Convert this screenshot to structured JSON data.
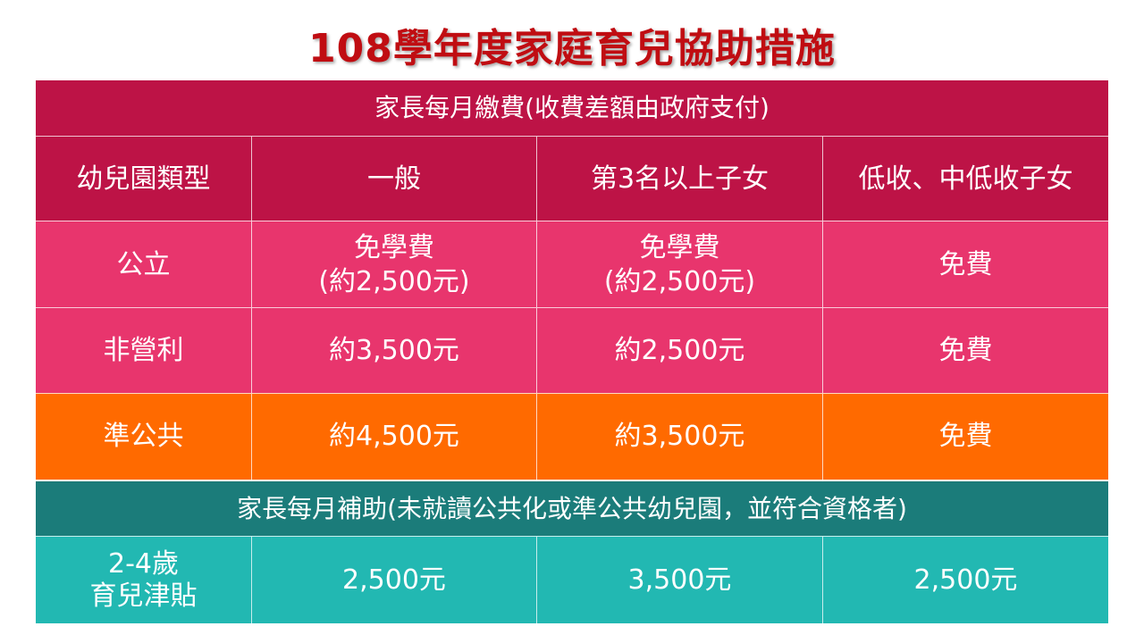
{
  "title": "108學年度家庭育兒協助措施",
  "colors": {
    "title": "#c00d12",
    "header": "#bd1346",
    "pink": "#e8356d",
    "orange": "#ff6a00",
    "teal_dark": "#1b7c7a",
    "teal": "#22b8b2"
  },
  "fees": {
    "section_title": "家長每月繳費(收費差額由政府支付)",
    "columns": [
      "幼兒園類型",
      "一般",
      "第3名以上子女",
      "低收、中低收子女"
    ],
    "rows": [
      {
        "type": "公立",
        "values": [
          "免學費\n(約2,500元)",
          "免學費\n(約2,500元)",
          "免費"
        ]
      },
      {
        "type": "非營利",
        "values": [
          "約3,500元",
          "約2,500元",
          "免費"
        ]
      },
      {
        "type": "準公共",
        "values": [
          "約4,500元",
          "約3,500元",
          "免費"
        ]
      }
    ]
  },
  "subsidy": {
    "section_title": "家長每月補助(未就讀公共化或準公共幼兒園，並符合資格者)",
    "row": {
      "type": "2-4歲\n育兒津貼",
      "values": [
        "2,500元",
        "3,500元",
        "2,500元"
      ]
    }
  }
}
